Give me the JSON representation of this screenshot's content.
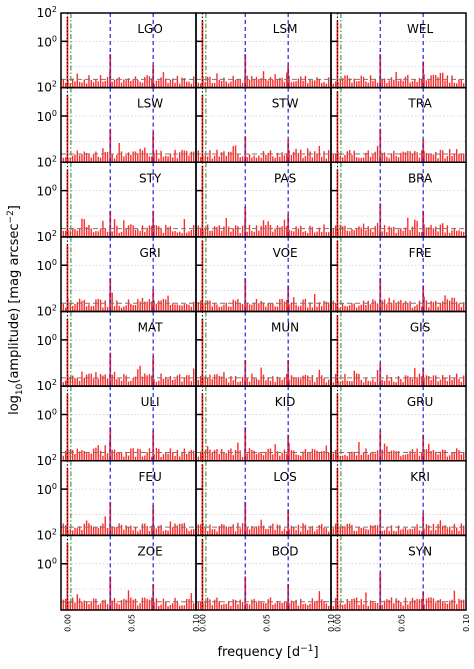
{
  "figure": {
    "ylabel_main": "log",
    "ylabel_sub": "10",
    "ylabel_rest": "(amplitude) [mag arcsec",
    "ylabel_sup": "−2",
    "ylabel_end": "]",
    "xlabel_main": "frequency [d",
    "xlabel_sup": "−1",
    "xlabel_end": "]"
  },
  "chart_data": {
    "type": "bar",
    "panel_grid": {
      "rows": 8,
      "cols": 3
    },
    "xlim": [
      -0.005,
      0.1
    ],
    "x_ticks": [
      "0.00",
      "0.05",
      "0.10"
    ],
    "y_ticks": [
      "10^2",
      "10^0"
    ],
    "y_scale": "log",
    "grid": "horizontal dotted",
    "reference_lines": {
      "black_dotted_x": 0.0,
      "green_dashdot_x": 0.0027,
      "blue_dashed_x": [
        0.0333,
        0.0667
      ],
      "gray_dashed_y": "noise level near bottom of each panel"
    },
    "colors": {
      "bars": "#ff2a2a",
      "blue": "#2222dd",
      "green": "#228822",
      "gray": "#777777"
    },
    "panels": [
      {
        "name": "LGO",
        "peaks": [
          [
            0.0,
            0.95
          ],
          [
            0.0333,
            0.45
          ],
          [
            0.0667,
            0.3
          ]
        ]
      },
      {
        "name": "LSM",
        "peaks": [
          [
            0.0,
            0.9
          ],
          [
            0.0333,
            0.45
          ],
          [
            0.0667,
            0.3
          ]
        ]
      },
      {
        "name": "WEL",
        "peaks": [
          [
            0.0,
            0.9
          ],
          [
            0.0333,
            0.45
          ],
          [
            0.0667,
            0.35
          ]
        ]
      },
      {
        "name": "LSW",
        "peaks": [
          [
            0.0,
            0.9
          ],
          [
            0.0333,
            0.45
          ],
          [
            0.0667,
            0.4
          ]
        ]
      },
      {
        "name": "STW",
        "peaks": [
          [
            0.0,
            0.9
          ],
          [
            0.0333,
            0.35
          ],
          [
            0.0667,
            0.3
          ]
        ]
      },
      {
        "name": "TRA",
        "peaks": [
          [
            0.0,
            0.95
          ],
          [
            0.0333,
            0.45
          ],
          [
            0.0667,
            0.3
          ]
        ]
      },
      {
        "name": "STY",
        "peaks": [
          [
            0.0,
            0.9
          ],
          [
            0.0333,
            0.35
          ],
          [
            0.0667,
            0.35
          ]
        ]
      },
      {
        "name": "PAS",
        "peaks": [
          [
            0.0,
            0.95
          ],
          [
            0.0333,
            0.4
          ],
          [
            0.0667,
            0.3
          ]
        ]
      },
      {
        "name": "BRA",
        "peaks": [
          [
            0.0,
            0.9
          ],
          [
            0.0333,
            0.45
          ],
          [
            0.0667,
            0.35
          ]
        ]
      },
      {
        "name": "GRI",
        "peaks": [
          [
            0.0,
            0.9
          ],
          [
            0.0333,
            0.45
          ],
          [
            0.0667,
            0.3
          ]
        ]
      },
      {
        "name": "VOE",
        "peaks": [
          [
            0.0,
            0.95
          ],
          [
            0.0333,
            0.45
          ],
          [
            0.0667,
            0.35
          ]
        ]
      },
      {
        "name": "FRE",
        "peaks": [
          [
            0.0,
            0.95
          ],
          [
            0.0333,
            0.45
          ],
          [
            0.0667,
            0.35
          ]
        ]
      },
      {
        "name": "MAT",
        "peaks": [
          [
            0.0,
            0.9
          ],
          [
            0.0333,
            0.45
          ],
          [
            0.0667,
            0.4
          ]
        ]
      },
      {
        "name": "MUN",
        "peaks": [
          [
            0.0,
            0.9
          ],
          [
            0.0333,
            0.35
          ],
          [
            0.0667,
            0.35
          ]
        ]
      },
      {
        "name": "GIS",
        "peaks": [
          [
            0.0,
            0.95
          ],
          [
            0.0333,
            0.3
          ],
          [
            0.0667,
            0.25
          ]
        ]
      },
      {
        "name": "ULI",
        "peaks": [
          [
            0.0,
            0.9
          ],
          [
            0.0333,
            0.45
          ],
          [
            0.0667,
            0.4
          ]
        ]
      },
      {
        "name": "KID",
        "peaks": [
          [
            0.0,
            0.9
          ],
          [
            0.0333,
            0.45
          ],
          [
            0.0667,
            0.35
          ]
        ]
      },
      {
        "name": "GRU",
        "peaks": [
          [
            0.0,
            0.9
          ],
          [
            0.0333,
            0.4
          ],
          [
            0.0667,
            0.35
          ]
        ]
      },
      {
        "name": "FEU",
        "peaks": [
          [
            0.0,
            0.9
          ],
          [
            0.0333,
            0.45
          ],
          [
            0.0667,
            0.4
          ]
        ]
      },
      {
        "name": "LOS",
        "peaks": [
          [
            0.0,
            0.95
          ],
          [
            0.0333,
            0.45
          ],
          [
            0.0667,
            0.35
          ]
        ]
      },
      {
        "name": "KRI",
        "peaks": [
          [
            0.0,
            0.9
          ],
          [
            0.0333,
            0.35
          ],
          [
            0.0667,
            0.3
          ]
        ]
      },
      {
        "name": "ZOE",
        "peaks": [
          [
            0.0,
            0.9
          ],
          [
            0.0333,
            0.45
          ],
          [
            0.0667,
            0.35
          ]
        ]
      },
      {
        "name": "BOD",
        "peaks": [
          [
            0.0,
            0.95
          ],
          [
            0.0333,
            0.45
          ],
          [
            0.0667,
            0.35
          ]
        ]
      },
      {
        "name": "SYN",
        "peaks": [
          [
            0.0,
            0.95
          ],
          [
            0.0333,
            0.5
          ],
          [
            0.0667,
            0.25
          ]
        ]
      }
    ]
  }
}
